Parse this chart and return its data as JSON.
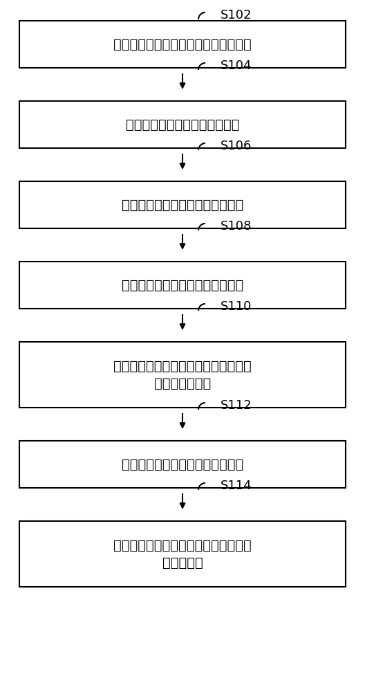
{
  "steps": [
    {
      "label": "S102",
      "text": "获取衬底，所述衬底上形成有栅极结构",
      "lines": 1
    },
    {
      "label": "S104",
      "text": "在栅极结构两侧形成预非晶化区",
      "lines": 1
    },
    {
      "label": "S106",
      "text": "在所述预非晶化区中形成非晶化区",
      "lines": 1
    },
    {
      "label": "S108",
      "text": "在所述栅极结构两侧形成第一侧墙",
      "lines": 1
    },
    {
      "label": "S110",
      "text": "进行第二掺杂工艺，在所述非晶化区中\n形成第二掺杂区",
      "lines": 2
    },
    {
      "label": "S112",
      "text": "在所述第一侧墙两侧形成第二侧墙",
      "lines": 1
    },
    {
      "label": "S114",
      "text": "在所述第二掺杂区中形成重掺杂的源极\n区和漏极区",
      "lines": 2
    }
  ],
  "box_color": "#ffffff",
  "border_color": "#000000",
  "text_color": "#000000",
  "arrow_color": "#000000",
  "label_color": "#000000",
  "background_color": "#ffffff",
  "font_size": 14,
  "label_font_size": 13
}
